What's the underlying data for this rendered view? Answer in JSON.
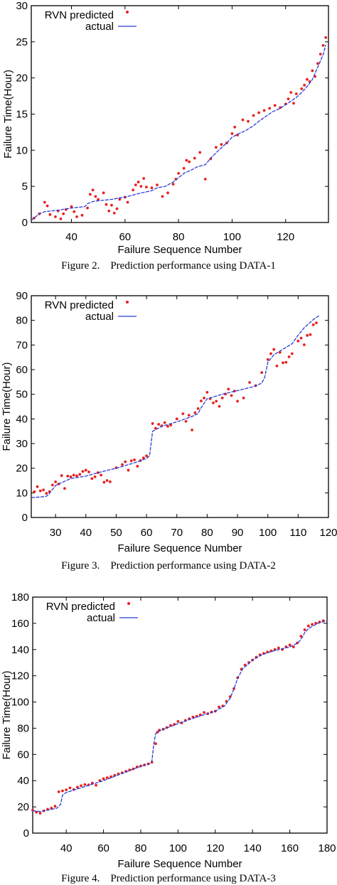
{
  "chart_data": [
    {
      "type": "scatter",
      "caption": "Figure 2.    Prediction performance using DATA-1",
      "xlabel": "Failure Sequence Number",
      "ylabel": "Failure Time(Hour)",
      "xlim": [
        25,
        136
      ],
      "ylim": [
        0,
        30
      ],
      "x_ticks": [
        "40",
        "60",
        "80",
        "100",
        "120"
      ],
      "x_tick_values": [
        40,
        60,
        80,
        100,
        120
      ],
      "y_ticks": [
        "0",
        "5",
        "10",
        "15",
        "20",
        "25",
        "30"
      ],
      "y_tick_values": [
        0,
        5,
        10,
        15,
        20,
        25,
        30
      ],
      "legend_position": "top-left",
      "series": [
        {
          "name": "RVN predicted",
          "style": "markers",
          "color": "#e8201c",
          "x": [
            26,
            28,
            30,
            31,
            32,
            34,
            35,
            36,
            37,
            38,
            40,
            41,
            42,
            44,
            46,
            47,
            48,
            49,
            50,
            52,
            53,
            54,
            55,
            56,
            57,
            58,
            60,
            61,
            63,
            64,
            65,
            66,
            67,
            68,
            70,
            72,
            74,
            76,
            78,
            79,
            80,
            82,
            83,
            84,
            86,
            88,
            90,
            92,
            94,
            96,
            98,
            100,
            101,
            102,
            104,
            106,
            108,
            110,
            112,
            114,
            116,
            118,
            120,
            121,
            122,
            123,
            124,
            126,
            127,
            128,
            129,
            130,
            131,
            132,
            133,
            134,
            135
          ],
          "y": [
            0.6,
            1.2,
            2.8,
            2.3,
            1.1,
            0.8,
            1.6,
            0.5,
            1.2,
            1.8,
            2.2,
            1.5,
            0.8,
            1.0,
            2.0,
            3.9,
            4.5,
            3.6,
            3.2,
            4.1,
            2.5,
            1.6,
            2.4,
            1.3,
            1.9,
            3.2,
            3.5,
            2.8,
            4.5,
            5.2,
            5.6,
            5.0,
            6.1,
            4.9,
            4.8,
            5.2,
            3.6,
            4.1,
            5.3,
            6.0,
            6.8,
            7.5,
            8.6,
            8.4,
            8.9,
            9.7,
            6.0,
            8.8,
            10.4,
            10.8,
            11.0,
            12.3,
            13.2,
            12.1,
            14.2,
            14.0,
            14.8,
            15.2,
            15.5,
            15.8,
            16.2,
            15.9,
            16.4,
            17.1,
            18.0,
            16.5,
            17.8,
            18.5,
            19.0,
            19.8,
            19.5,
            21.0,
            20.2,
            22.0,
            23.3,
            24.5,
            25.6
          ]
        },
        {
          "name": "actual",
          "style": "line",
          "color": "#2a3bd6",
          "x": [
            25,
            28,
            30,
            35,
            40,
            45,
            46,
            48,
            50,
            55,
            58,
            60,
            65,
            70,
            72,
            75,
            78,
            80,
            82,
            85,
            87,
            90,
            92,
            95,
            98,
            100,
            102,
            105,
            108,
            110,
            115,
            118,
            120,
            122,
            124,
            126,
            128,
            130,
            132,
            134,
            135
          ],
          "y": [
            0.3,
            1.2,
            1.5,
            1.7,
            2.0,
            2.2,
            2.6,
            2.9,
            3.0,
            3.2,
            3.4,
            3.5,
            4.0,
            4.4,
            4.8,
            5.0,
            5.6,
            6.2,
            6.8,
            7.3,
            7.7,
            8.0,
            8.9,
            10.0,
            11.0,
            11.8,
            12.2,
            12.7,
            13.4,
            14.0,
            15.3,
            15.8,
            16.3,
            16.8,
            17.3,
            18.0,
            18.8,
            19.8,
            21.5,
            23.2,
            24.6
          ]
        }
      ]
    },
    {
      "type": "scatter",
      "caption": "Figure 3.    Prediction performance using DATA-2",
      "xlabel": "Failure Sequence Number",
      "ylabel": "Failure Time(Hour)",
      "xlim": [
        22,
        120
      ],
      "ylim": [
        0,
        90
      ],
      "x_ticks": [
        "30",
        "40",
        "50",
        "60",
        "70",
        "80",
        "90",
        "100",
        "110",
        "120"
      ],
      "x_tick_values": [
        30,
        40,
        50,
        60,
        70,
        80,
        90,
        100,
        110,
        120
      ],
      "y_ticks": [
        "0",
        "10",
        "20",
        "30",
        "40",
        "50",
        "60",
        "70",
        "80",
        "90"
      ],
      "y_tick_values": [
        0,
        10,
        20,
        30,
        40,
        50,
        60,
        70,
        80,
        90
      ],
      "legend_position": "top-left",
      "series": [
        {
          "name": "RVN predicted",
          "style": "markers",
          "color": "#e8201c",
          "x": [
            23,
            24,
            25,
            26,
            27,
            28,
            29,
            30,
            31,
            32,
            33,
            34,
            35,
            36,
            37,
            38,
            39,
            40,
            41,
            42,
            43,
            44,
            45,
            46,
            47,
            48,
            50,
            52,
            53,
            54,
            55,
            56,
            57,
            58,
            59,
            60,
            62,
            63,
            64,
            65,
            66,
            67,
            68,
            70,
            72,
            73,
            74,
            75,
            76,
            77,
            78,
            79,
            80,
            81,
            82,
            83,
            84,
            85,
            86,
            87,
            88,
            89,
            90,
            92,
            94,
            96,
            98,
            100,
            101,
            102,
            103,
            104,
            105,
            106,
            107,
            108,
            110,
            111,
            112,
            113,
            114,
            115,
            116
          ],
          "y": [
            10.5,
            12.5,
            10.8,
            11.2,
            9.8,
            10.5,
            13.2,
            14.5,
            13.6,
            17.0,
            11.8,
            16.8,
            16.5,
            17.2,
            16.9,
            17.5,
            18.7,
            19.2,
            18.5,
            15.8,
            16.5,
            18.2,
            17.2,
            14.3,
            15.0,
            14.5,
            20.2,
            21.5,
            22.6,
            19.2,
            23.0,
            23.4,
            20.8,
            23.1,
            24.2,
            25.0,
            38.1,
            36.2,
            37.8,
            37.2,
            38.5,
            37.0,
            37.5,
            40.0,
            42.1,
            39.0,
            41.5,
            35.5,
            42.5,
            44.2,
            47.3,
            48.5,
            50.8,
            48.2,
            46.5,
            47.2,
            45.1,
            48.5,
            50.1,
            52.1,
            49.5,
            51.3,
            47.2,
            48.5,
            54.8,
            53.5,
            58.8,
            64.1,
            66.5,
            68.2,
            61.5,
            67.0,
            62.8,
            63.0,
            65.2,
            66.5,
            71.6,
            72.8,
            70.1,
            73.9,
            74.2,
            78.2,
            79.0
          ]
        },
        {
          "name": "actual",
          "style": "line",
          "color": "#2a3bd6",
          "x": [
            22,
            25,
            27,
            28,
            30,
            35,
            40,
            45,
            50,
            55,
            58,
            60,
            61,
            62,
            65,
            70,
            75,
            77,
            78,
            80,
            85,
            90,
            95,
            98,
            99,
            100,
            102,
            105,
            108,
            110,
            112,
            115,
            117
          ],
          "y": [
            8.1,
            8.3,
            8.6,
            9.8,
            13.0,
            15.8,
            16.8,
            18.5,
            20.0,
            21.8,
            23.0,
            24.0,
            25.0,
            35.0,
            37.0,
            38.8,
            41.0,
            42.2,
            44.5,
            48.2,
            50.0,
            51.5,
            53.0,
            54.5,
            57.0,
            63.0,
            66.0,
            68.3,
            70.5,
            74.0,
            77.0,
            80.3,
            82.0
          ]
        }
      ]
    },
    {
      "type": "scatter",
      "caption": "Figure 4.    Prediction performance using DATA-3",
      "xlabel": "Failure Sequence Number",
      "ylabel": "Failure Time(Hour)",
      "xlim": [
        22,
        180
      ],
      "ylim": [
        0,
        180
      ],
      "x_ticks": [
        "40",
        "60",
        "80",
        "100",
        "120",
        "140",
        "160",
        "180"
      ],
      "x_tick_values": [
        40,
        60,
        80,
        100,
        120,
        140,
        160,
        180
      ],
      "y_ticks": [
        "0",
        "20",
        "40",
        "60",
        "80",
        "100",
        "120",
        "140",
        "160",
        "180"
      ],
      "y_tick_values": [
        0,
        20,
        40,
        60,
        80,
        100,
        120,
        140,
        160,
        180
      ],
      "legend_position": "top-left",
      "series": [
        {
          "name": "RVN predicted",
          "style": "markers",
          "color": "#e8201c",
          "x": [
            22,
            24,
            26,
            28,
            30,
            32,
            34,
            36,
            38,
            40,
            42,
            44,
            46,
            48,
            50,
            52,
            54,
            56,
            58,
            60,
            62,
            64,
            66,
            68,
            70,
            72,
            74,
            76,
            78,
            80,
            82,
            84,
            86,
            88,
            89,
            90,
            92,
            94,
            96,
            98,
            100,
            102,
            104,
            106,
            108,
            110,
            112,
            114,
            116,
            118,
            120,
            122,
            124,
            126,
            128,
            130,
            132,
            134,
            136,
            138,
            140,
            142,
            144,
            146,
            148,
            150,
            152,
            154,
            156,
            158,
            160,
            162,
            164,
            166,
            168,
            170,
            172,
            174,
            176,
            178
          ],
          "y": [
            17.5,
            16.0,
            15.2,
            17.0,
            18.2,
            19.0,
            20.5,
            31.5,
            32.2,
            33.0,
            34.5,
            33.2,
            35.0,
            36.2,
            37.0,
            36.8,
            38.2,
            36.5,
            40.1,
            41.5,
            42.3,
            43.0,
            44.1,
            45.2,
            46.0,
            47.1,
            48.2,
            49.0,
            50.5,
            51.2,
            52.0,
            52.8,
            54.1,
            68.2,
            77.0,
            78.5,
            79.2,
            80.5,
            82.1,
            83.0,
            85.2,
            84.1,
            86.0,
            87.2,
            88.5,
            89.1,
            90.2,
            92.0,
            91.1,
            92.3,
            93.0,
            96.2,
            97.0,
            100.5,
            104.1,
            110.2,
            118.5,
            125.0,
            128.2,
            130.1,
            132.0,
            134.2,
            136.0,
            137.1,
            138.2,
            139.0,
            140.1,
            141.2,
            140.0,
            142.1,
            143.5,
            142.0,
            145.0,
            150.2,
            155.1,
            158.0,
            159.2,
            160.1,
            161.0,
            162.0
          ]
        },
        {
          "name": "actual",
          "style": "line",
          "color": "#2a3bd6",
          "x": [
            22,
            26,
            30,
            35,
            37,
            38,
            40,
            50,
            60,
            70,
            80,
            85,
            86,
            87,
            88,
            90,
            100,
            110,
            120,
            125,
            128,
            130,
            132,
            135,
            137,
            140,
            145,
            150,
            160,
            163,
            165,
            167,
            168,
            170,
            175,
            180
          ],
          "y": [
            17.0,
            16.5,
            17.5,
            19.0,
            22.0,
            29.0,
            31.0,
            35.5,
            40.0,
            45.5,
            51.0,
            53.0,
            55.0,
            68.0,
            76.0,
            78.0,
            83.5,
            88.5,
            93.0,
            97.0,
            103.0,
            110.0,
            118.0,
            126.0,
            128.0,
            132.0,
            136.0,
            138.5,
            142.0,
            144.0,
            146.0,
            150.0,
            153.0,
            156.0,
            160.0,
            162.0
          ]
        }
      ]
    }
  ]
}
